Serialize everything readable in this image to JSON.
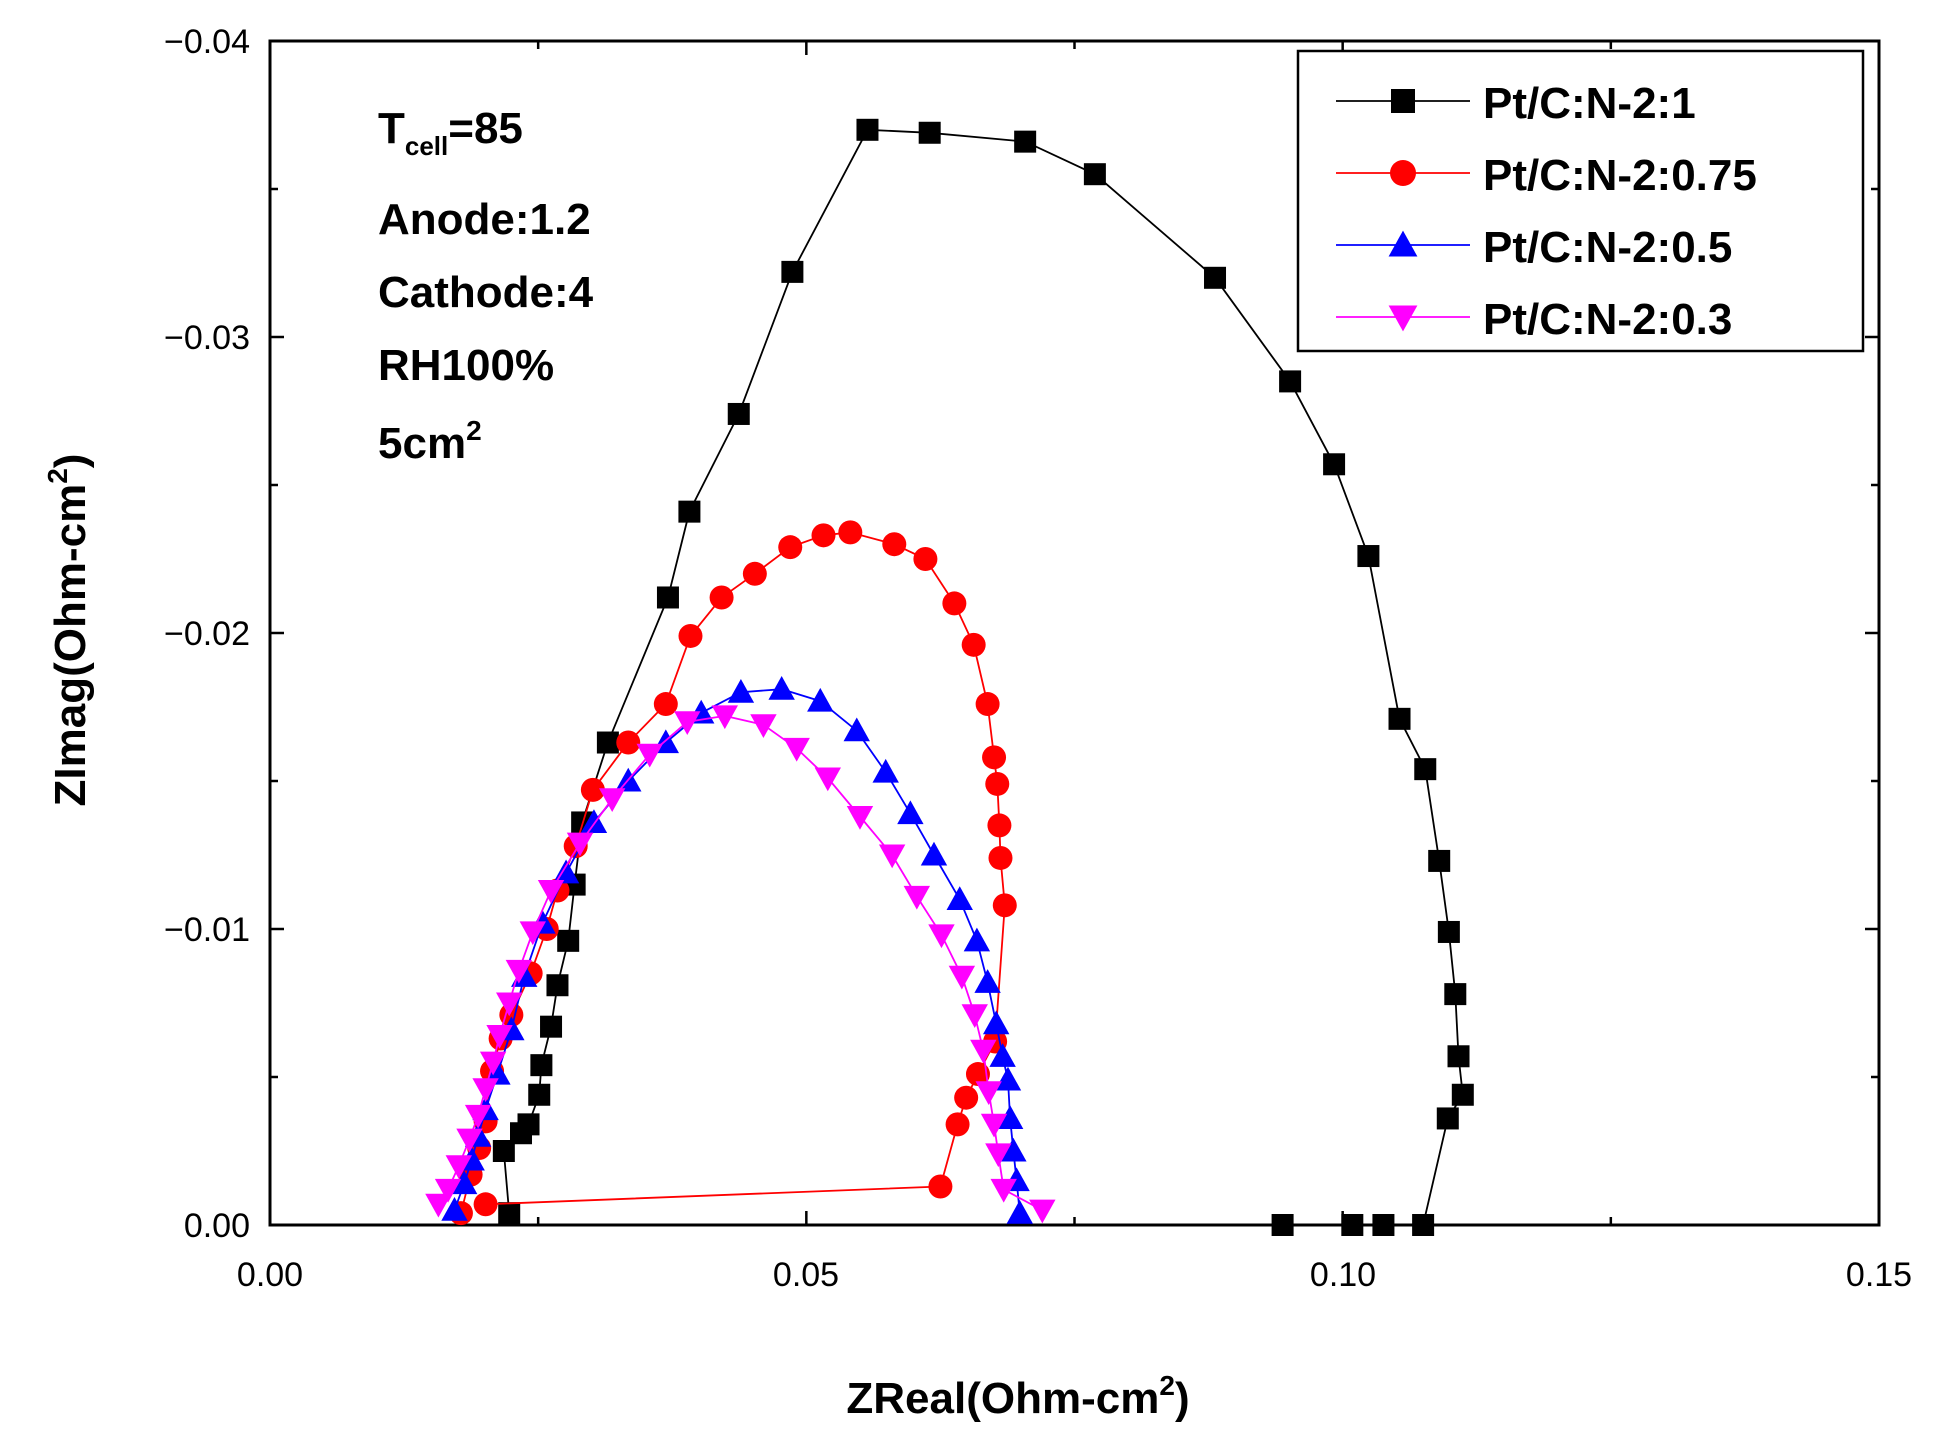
{
  "chart_data": {
    "type": "scatter",
    "xlabel": "ZReal(Ohm-cm",
    "xlabel_sup": "2",
    "xlabel_end": ")",
    "ylabel": "ZImag(Ohm-cm",
    "ylabel_sup": "2",
    "ylabel_end": ")",
    "xlim": [
      0.0,
      0.15
    ],
    "ylim": [
      0.0,
      -0.04
    ],
    "x_ticks": [
      0.0,
      0.05,
      0.1,
      0.15
    ],
    "x_tick_labels": [
      "0.00",
      "0.05",
      "0.10",
      "0.15"
    ],
    "y_ticks": [
      0.0,
      -0.01,
      -0.02,
      -0.03,
      -0.04
    ],
    "y_tick_labels": [
      "0.00",
      "−0.01",
      "−0.02",
      "−0.03",
      "−0.04"
    ],
    "annotations": {
      "tcell_T": "T",
      "tcell_sub": "cell",
      "tcell_value": "=85",
      "anode": "Anode:1.2",
      "cathode": "Cathode:4",
      "rh": "RH100%",
      "area": "5cm",
      "area_sup": "2"
    },
    "legend_position": "top-right",
    "series": [
      {
        "name": "Pt/C:N-2:1",
        "color": "#000000",
        "marker": "square",
        "x": [
          0.0223,
          0.0218,
          0.0234,
          0.0241,
          0.0251,
          0.0253,
          0.0262,
          0.0268,
          0.0278,
          0.0284,
          0.0291,
          0.0315,
          0.0371,
          0.0391,
          0.0437,
          0.0487,
          0.0557,
          0.0615,
          0.0704,
          0.0769,
          0.0881,
          0.0951,
          0.0992,
          0.1024,
          0.1053,
          0.1077,
          0.109,
          0.1099,
          0.1105,
          0.1108,
          0.1112,
          0.1098,
          0.1075,
          0.1038,
          0.1009,
          0.0944
        ],
        "y": [
          -0.0004,
          -0.0025,
          -0.0031,
          -0.0034,
          -0.0044,
          -0.0054,
          -0.0067,
          -0.0081,
          -0.0096,
          -0.0115,
          -0.0136,
          -0.0163,
          -0.0212,
          -0.0241,
          -0.0274,
          -0.0322,
          -0.037,
          -0.0369,
          -0.0366,
          -0.0355,
          -0.032,
          -0.0285,
          -0.0257,
          -0.0226,
          -0.0171,
          -0.0154,
          -0.0123,
          -0.0099,
          -0.0078,
          -0.0057,
          -0.0044,
          -0.0036,
          0.0,
          0.0,
          0.0,
          0.0
        ]
      },
      {
        "name": "Pt/C:N-2:0.75",
        "color": "#ff0000",
        "marker": "circle",
        "x": [
          0.0178,
          0.0187,
          0.0195,
          0.0201,
          0.0207,
          0.0215,
          0.0225,
          0.0243,
          0.0258,
          0.0268,
          0.0285,
          0.0301,
          0.0334,
          0.0369,
          0.0392,
          0.0421,
          0.0452,
          0.0485,
          0.0516,
          0.0541,
          0.0582,
          0.0611,
          0.0638,
          0.0656,
          0.0669,
          0.0675,
          0.0678,
          0.068,
          0.0681,
          0.0685,
          0.0676,
          0.066,
          0.0649,
          0.0641,
          0.0625,
          0.0201
        ],
        "y": [
          -0.0004,
          -0.0017,
          -0.0026,
          -0.0035,
          -0.0052,
          -0.0063,
          -0.0071,
          -0.0085,
          -0.01,
          -0.0113,
          -0.0128,
          -0.0147,
          -0.0163,
          -0.0176,
          -0.0199,
          -0.0212,
          -0.022,
          -0.0229,
          -0.0233,
          -0.0234,
          -0.023,
          -0.0225,
          -0.021,
          -0.0196,
          -0.0176,
          -0.0158,
          -0.0149,
          -0.0135,
          -0.0124,
          -0.0108,
          -0.0062,
          -0.0051,
          -0.0043,
          -0.0034,
          -0.0013,
          -0.0007
        ]
      },
      {
        "name": "Pt/C:N-2:0.5",
        "color": "#0000ff",
        "marker": "triangle-up",
        "x": [
          0.0172,
          0.0181,
          0.0188,
          0.0194,
          0.0201,
          0.0212,
          0.0225,
          0.0237,
          0.0254,
          0.0276,
          0.0302,
          0.0334,
          0.0369,
          0.0402,
          0.0439,
          0.0477,
          0.0513,
          0.0547,
          0.0574,
          0.0597,
          0.0619,
          0.0643,
          0.0659,
          0.0669,
          0.0677,
          0.0683,
          0.0688,
          0.069,
          0.0693,
          0.0696,
          0.0699
        ],
        "y": [
          -0.0005,
          -0.0014,
          -0.0022,
          -0.003,
          -0.0039,
          -0.0051,
          -0.0066,
          -0.0084,
          -0.0102,
          -0.0119,
          -0.0136,
          -0.015,
          -0.0163,
          -0.0173,
          -0.018,
          -0.0181,
          -0.0177,
          -0.0167,
          -0.0153,
          -0.0139,
          -0.0125,
          -0.011,
          -0.0096,
          -0.0082,
          -0.0068,
          -0.0057,
          -0.0049,
          -0.0036,
          -0.0025,
          -0.0015,
          -0.0004
        ]
      },
      {
        "name": "Pt/C:N-2:0.3",
        "color": "#ff00ff",
        "marker": "triangle-down",
        "x": [
          0.0157,
          0.0166,
          0.0176,
          0.0186,
          0.0194,
          0.0201,
          0.0208,
          0.0214,
          0.0223,
          0.0232,
          0.0245,
          0.0262,
          0.0289,
          0.0319,
          0.0354,
          0.0389,
          0.0424,
          0.046,
          0.0491,
          0.052,
          0.055,
          0.058,
          0.0603,
          0.0626,
          0.0645,
          0.0657,
          0.0665,
          0.067,
          0.0675,
          0.0679,
          0.0684,
          0.072
        ],
        "y": [
          -0.0007,
          -0.0012,
          -0.002,
          -0.0029,
          -0.0037,
          -0.0046,
          -0.0055,
          -0.0064,
          -0.0075,
          -0.0086,
          -0.0099,
          -0.0113,
          -0.0129,
          -0.0144,
          -0.0159,
          -0.017,
          -0.0172,
          -0.0169,
          -0.0161,
          -0.0151,
          -0.0138,
          -0.0125,
          -0.0111,
          -0.0098,
          -0.0084,
          -0.0071,
          -0.0059,
          -0.0045,
          -0.0034,
          -0.0024,
          -0.0012,
          -0.0005
        ]
      }
    ]
  }
}
